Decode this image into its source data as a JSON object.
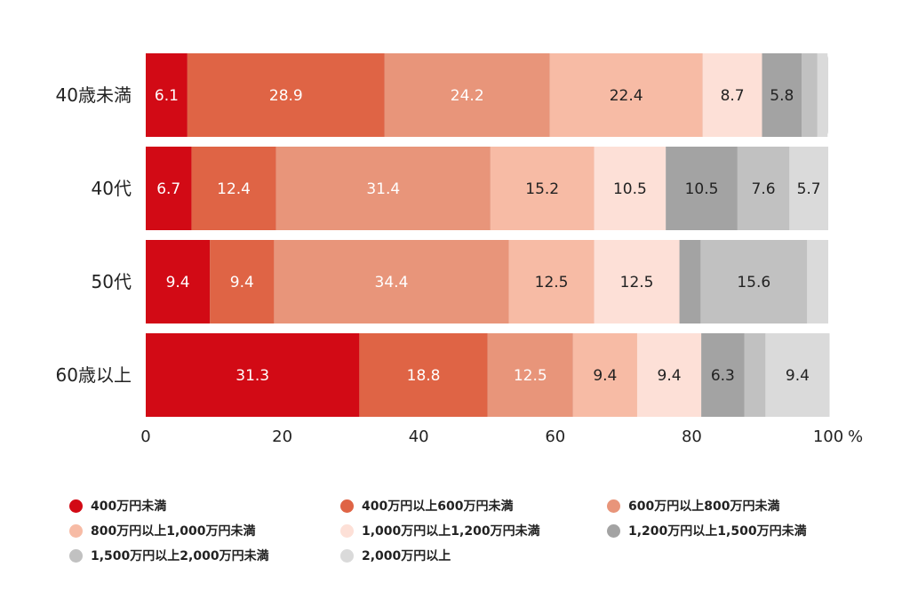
{
  "chart_data": {
    "type": "bar",
    "orientation": "horizontal",
    "stacked": true,
    "categories": [
      "40歳未満",
      "40代",
      "50代",
      "60歳以上"
    ],
    "series": [
      {
        "name": "400万円未満",
        "color": "#d20a15",
        "values": [
          6.1,
          6.7,
          9.4,
          31.3
        ],
        "label_color": "#ffffff"
      },
      {
        "name": "400万円以上600万円未満",
        "color": "#df6445",
        "values": [
          28.9,
          12.4,
          9.4,
          18.8
        ],
        "label_color": "#ffffff"
      },
      {
        "name": "600万円以上800万円未満",
        "color": "#e8957a",
        "values": [
          24.2,
          31.4,
          34.4,
          12.5
        ],
        "label_color": "#ffffff"
      },
      {
        "name": "800万円以上1,000万円未満",
        "color": "#f7bba5",
        "values": [
          22.4,
          15.2,
          12.5,
          9.4
        ],
        "label_color": "#222222"
      },
      {
        "name": "1,000万円以上1,200万円未満",
        "color": "#fde0d7",
        "values": [
          8.7,
          10.5,
          12.5,
          9.4
        ],
        "label_color": "#222222"
      },
      {
        "name": "1,200万円以上1,500万円未満",
        "color": "#a3a3a3",
        "values": [
          5.8,
          10.5,
          3.1,
          6.3
        ],
        "label_color": "#222222"
      },
      {
        "name": "1,500万円以上2,000万円未満",
        "color": "#c1c1c1",
        "values": [
          2.3,
          7.6,
          15.6,
          3.1
        ],
        "label_color": "#222222"
      },
      {
        "name": "2,000万円以上",
        "color": "#dadada",
        "values": [
          1.5,
          5.7,
          3.1,
          9.4
        ],
        "label_color": "#222222"
      }
    ],
    "bar_labels": [
      [
        "6.1",
        "28.9",
        "24.2",
        "22.4",
        "8.7",
        "5.8",
        "",
        ""
      ],
      [
        "6.7",
        "12.4",
        "31.4",
        "15.2",
        "10.5",
        "10.5",
        "7.6",
        "5.7"
      ],
      [
        "9.4",
        "9.4",
        "34.4",
        "12.5",
        "12.5",
        "",
        "15.6",
        ""
      ],
      [
        "31.3",
        "18.8",
        "12.5",
        "9.4",
        "9.4",
        "6.3",
        "",
        "9.4"
      ]
    ],
    "xlim": [
      0,
      100
    ],
    "x_ticks": [
      "0",
      "20",
      "40",
      "60",
      "80",
      "100"
    ],
    "x_unit": "%",
    "grid": false,
    "legend_position": "bottom"
  }
}
